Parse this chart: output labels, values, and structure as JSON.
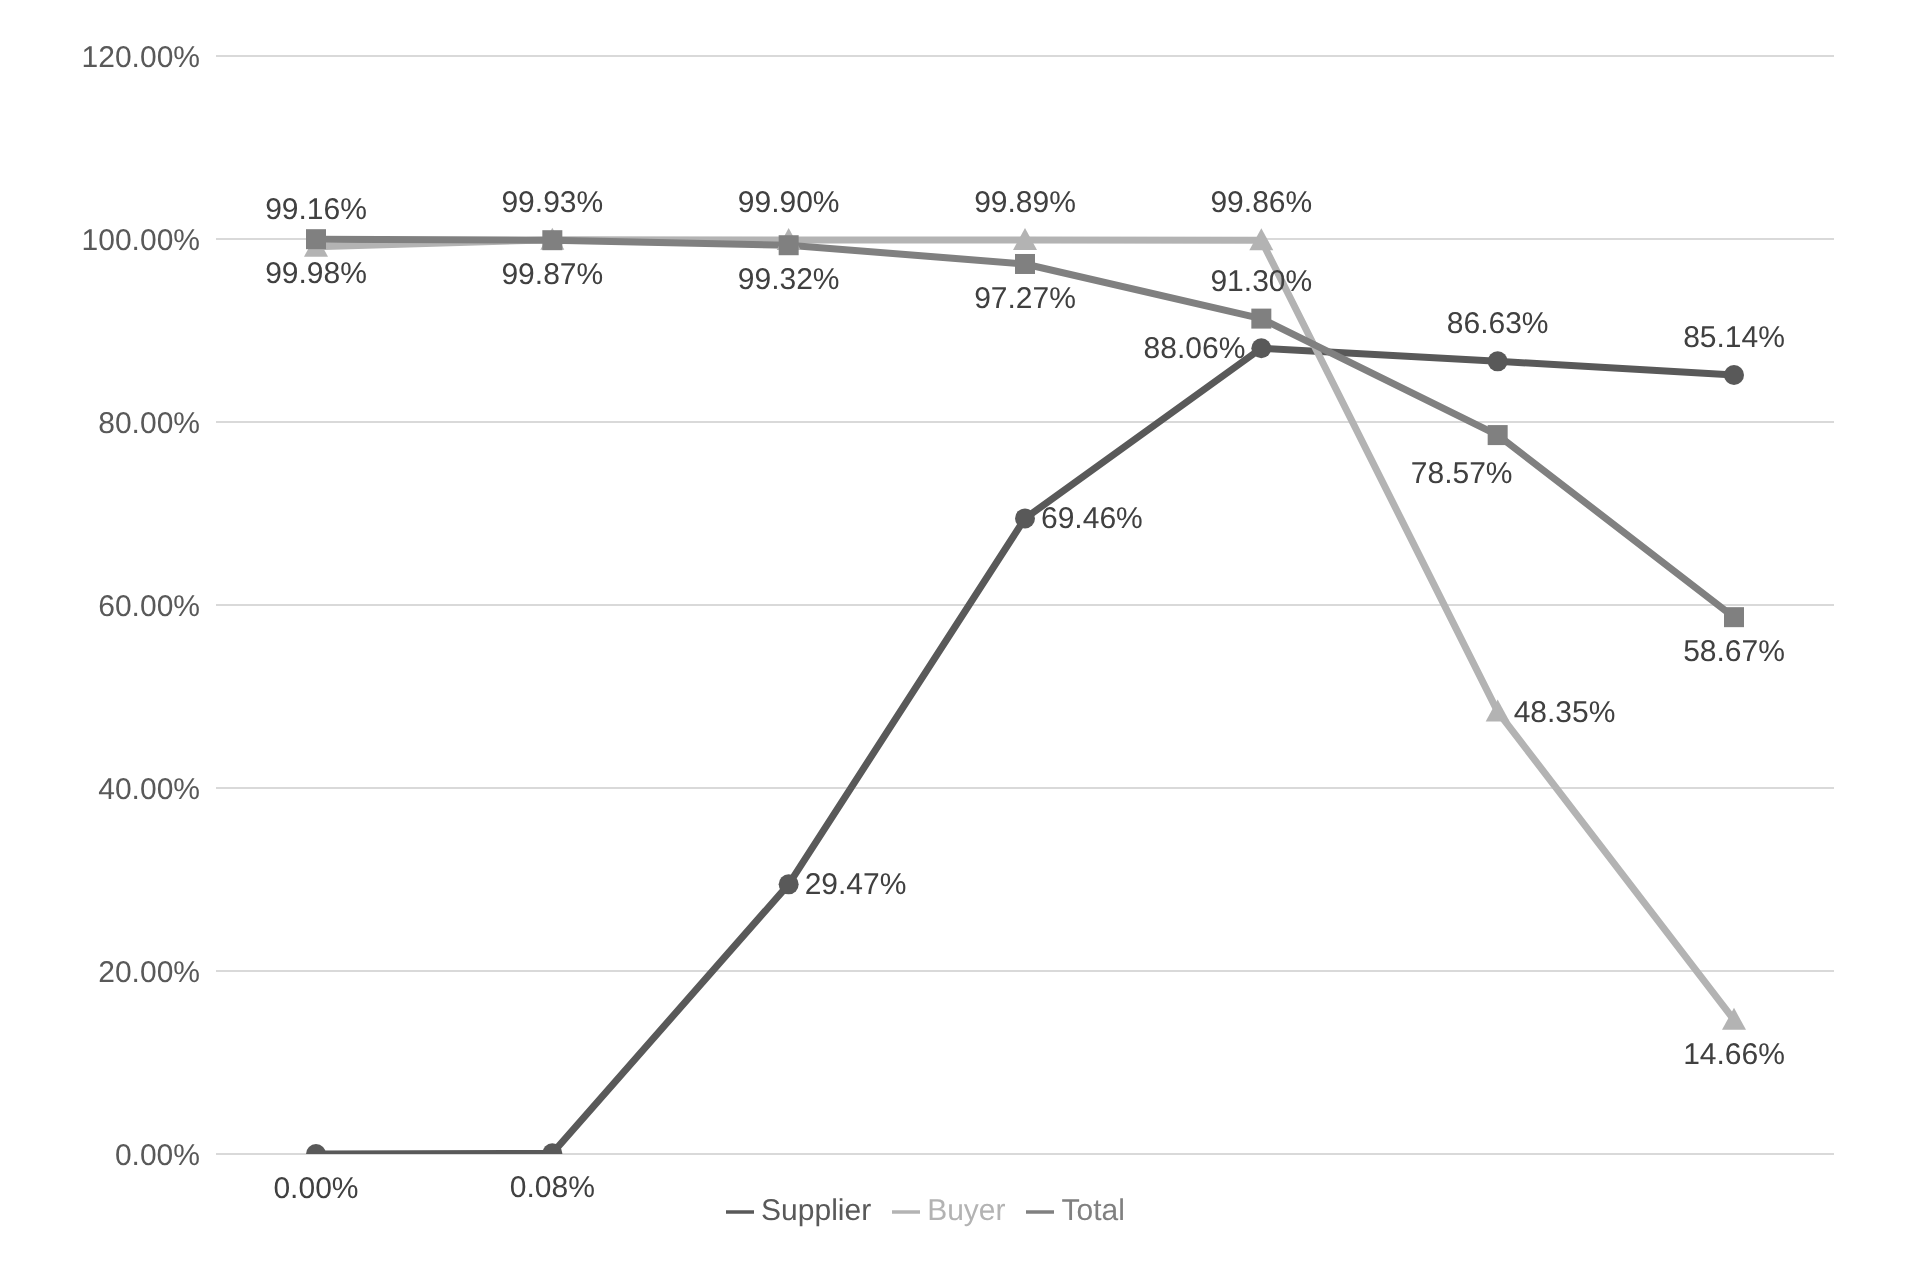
{
  "chart_data": {
    "type": "line",
    "categories": [
      null,
      null,
      null,
      null,
      null,
      null,
      null
    ],
    "series": [
      {
        "name": "Supplier",
        "color": "#595959",
        "marker": "circle",
        "values": [
          0,
          0.08,
          29.47,
          69.46,
          88.06,
          86.63,
          85.14
        ],
        "value_labels": [
          "0.00%",
          "0.08%",
          "29.47%",
          "69.46%",
          "88.06%",
          "86.63%",
          "85.14%"
        ]
      },
      {
        "name": "Buyer",
        "color": "#b3b3b3",
        "marker": "triangle",
        "values": [
          99.16,
          99.93,
          99.9,
          99.89,
          99.86,
          48.35,
          14.66
        ],
        "value_labels": [
          "99.16%",
          "99.93%",
          "99.90%",
          "99.89%",
          "99.86%",
          "48.35%",
          "14.66%"
        ]
      },
      {
        "name": "Total",
        "color": "#808080",
        "marker": "square",
        "values": [
          99.98,
          99.87,
          99.32,
          97.27,
          91.3,
          78.57,
          58.67
        ],
        "value_labels": [
          "99.98%",
          "99.87%",
          "99.32%",
          "97.27%",
          "91.30%",
          "78.57%",
          "58.67%"
        ]
      }
    ],
    "ylim": [
      0,
      120
    ],
    "yticks": [
      {
        "value": 0,
        "label": "0.00%"
      },
      {
        "value": 20,
        "label": "20.00%"
      },
      {
        "value": 40,
        "label": "40.00%"
      },
      {
        "value": 60,
        "label": "60.00%"
      },
      {
        "value": 80,
        "label": "80.00%"
      },
      {
        "value": 100,
        "label": "100.00%"
      },
      {
        "value": 120,
        "label": "120.00%"
      }
    ],
    "grid": "y",
    "legend": "bottom"
  }
}
